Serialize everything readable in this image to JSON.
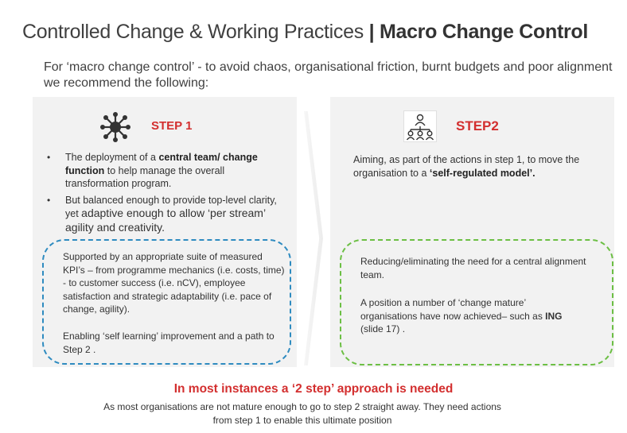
{
  "title": {
    "prefix": "Controlled Change & Working Practices",
    "separator": "|",
    "main": "Macro Change Control"
  },
  "intro": "For ‘macro change control’ - to avoid chaos, organisational friction, burnt budgets and poor alignment we recommend the following:",
  "step1": {
    "icon": "network-hub-icon",
    "label": "STEP 1",
    "bullet1": {
      "pre": "The deployment of a ",
      "bold": "central team/ change function",
      "post": " to help manage the overall transformation program."
    },
    "bullet2": {
      "pre": "But balanced enough to provide top-level clarity, yet ",
      "post": "adaptive enough to allow ‘per stream’ agility and creativity."
    },
    "box": {
      "para1": "Supported by an appropriate suite of measured KPI’s – from programme mechanics (i.e. costs, time) - to customer success (i.e. nCV), employee satisfaction and strategic adaptability (i.e. pace of change, agility).",
      "para2": "Enabling ‘self learning’ improvement and a path to Step 2 ."
    }
  },
  "step2": {
    "icon": "team-hierarchy-icon",
    "label": "STEP2",
    "text": {
      "pre": "Aiming, as part of the actions in step 1, to move the organisation to a ",
      "bold": "‘self-regulated model’."
    },
    "box": {
      "para1": "Reducing/eliminating the need for a central alignment team.",
      "para2_pre": "A position a number of ‘change mature’ organisations have now achieved– such as ",
      "para2_bold": "ING",
      "para2_post": " (slide 17) ."
    }
  },
  "footer": {
    "headline": "In most instances a ‘2 step’ approach is needed",
    "subtext": "As most organisations are not mature enough to go to step 2 straight away. They need actions from step 1 to enable this ultimate position"
  },
  "colors": {
    "accent_red": "#d32f2f",
    "blue_dashed": "#2e8bc0",
    "green_dashed": "#6cbf44",
    "panel_bg": "#f2f2f2"
  }
}
